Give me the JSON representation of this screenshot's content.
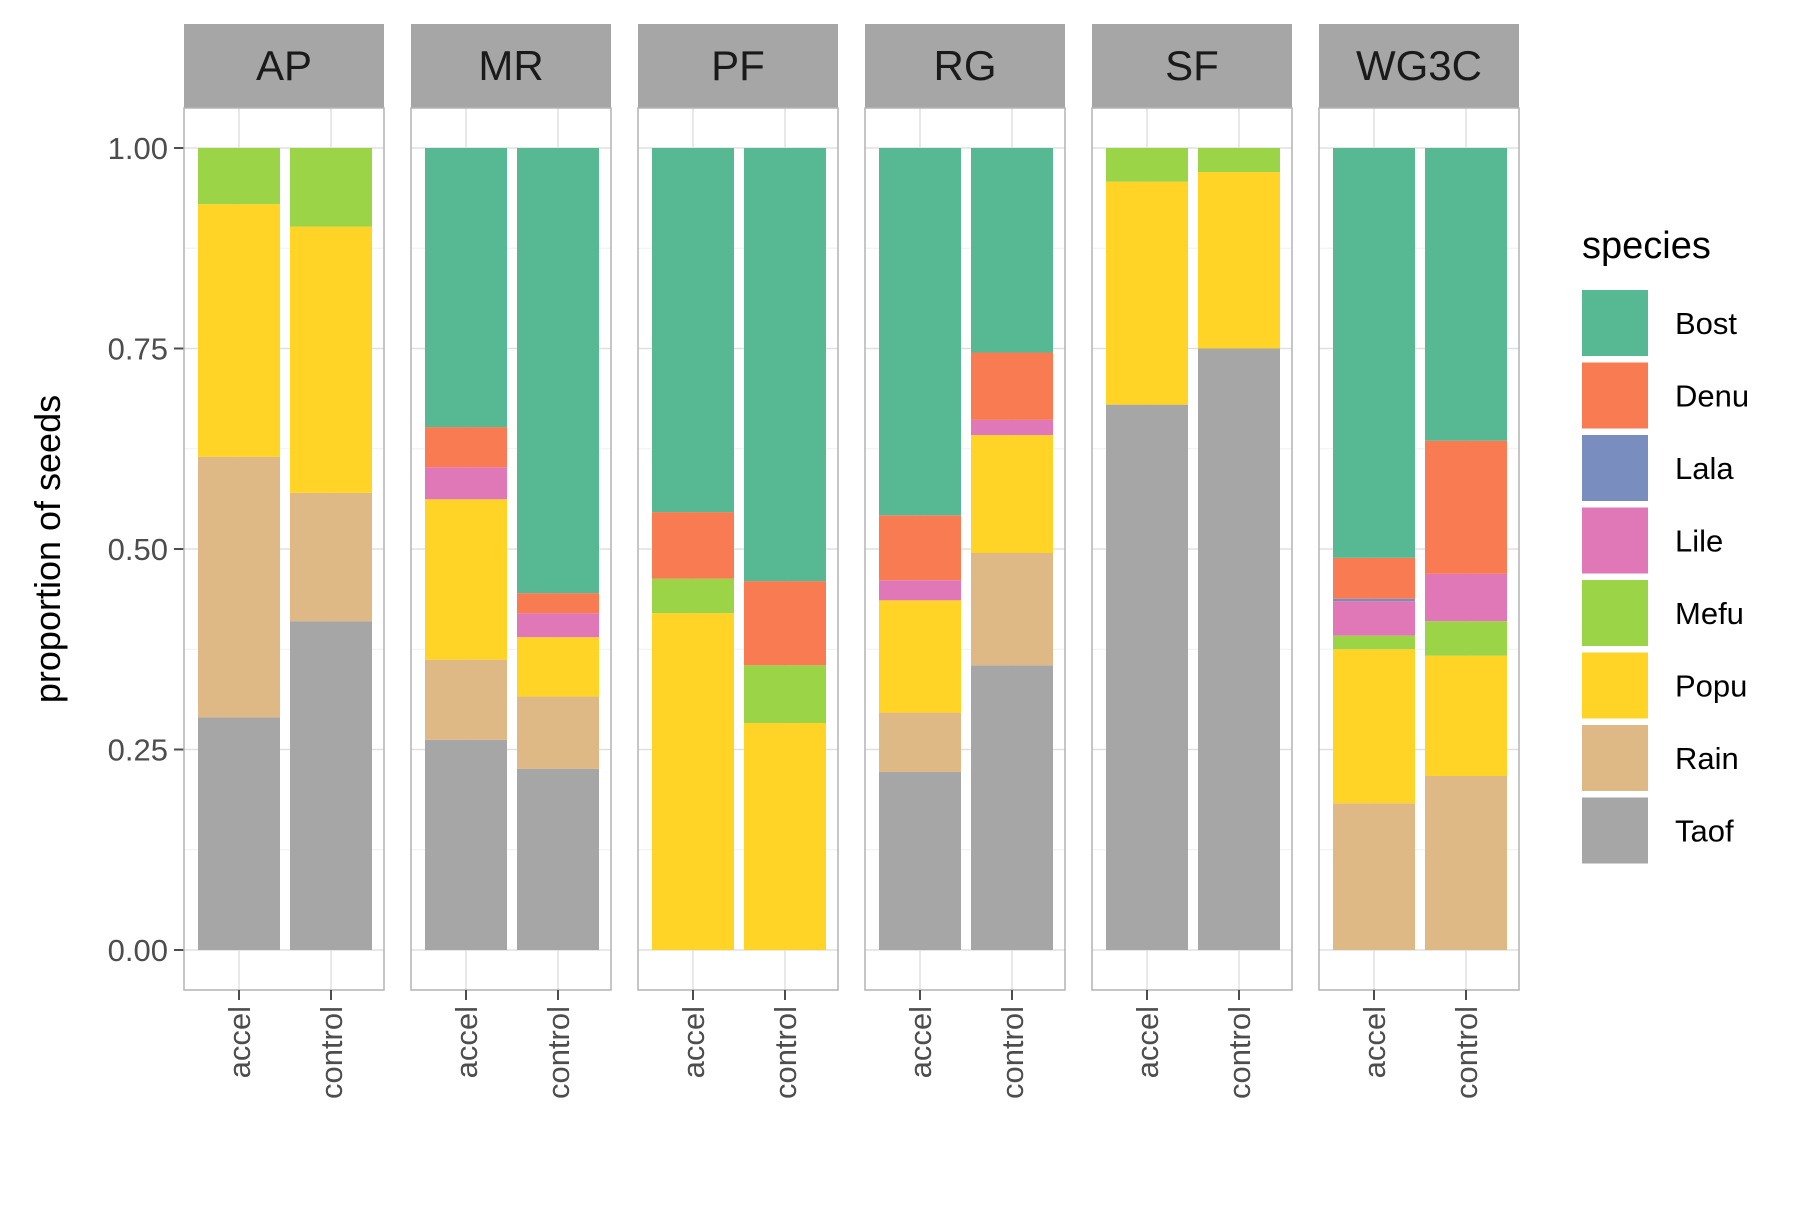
{
  "chart_data": {
    "type": "bar",
    "stacked": true,
    "faceted": true,
    "ylabel": "proportion of seeds",
    "xlabel": "",
    "ylim": [
      0,
      1
    ],
    "y_ticks": [
      0,
      0.25,
      0.5,
      0.75,
      1.0
    ],
    "y_tick_labels": [
      "0.00",
      "0.25",
      "0.50",
      "0.75",
      "1.00"
    ],
    "categories": [
      "accel",
      "control"
    ],
    "legend": {
      "title": "species",
      "position": "right",
      "items": [
        {
          "name": "Bost",
          "color": "#57b994"
        },
        {
          "name": "Denu",
          "color": "#f87b52"
        },
        {
          "name": "Lala",
          "color": "#7a8dbf"
        },
        {
          "name": "Lile",
          "color": "#e078b8"
        },
        {
          "name": "Mefu",
          "color": "#9cd447"
        },
        {
          "name": "Popu",
          "color": "#ffd426"
        },
        {
          "name": "Rain",
          "color": "#deb885"
        },
        {
          "name": "Taof",
          "color": "#a6a6a6"
        }
      ]
    },
    "stack_order": [
      "Taof",
      "Rain",
      "Popu",
      "Mefu",
      "Lile",
      "Lala",
      "Denu",
      "Bost"
    ],
    "facets": [
      {
        "name": "AP",
        "bars": [
          {
            "category": "accel",
            "values": {
              "Taof": 0.29,
              "Rain": 0.325,
              "Popu": 0.315,
              "Mefu": 0.07
            }
          },
          {
            "category": "control",
            "values": {
              "Taof": 0.41,
              "Rain": 0.16,
              "Popu": 0.332,
              "Mefu": 0.098
            }
          }
        ]
      },
      {
        "name": "MR",
        "bars": [
          {
            "category": "accel",
            "values": {
              "Taof": 0.262,
              "Rain": 0.1,
              "Popu": 0.2,
              "Lile": 0.04,
              "Denu": 0.05,
              "Bost": 0.348
            }
          },
          {
            "category": "control",
            "values": {
              "Taof": 0.226,
              "Rain": 0.09,
              "Popu": 0.074,
              "Lile": 0.03,
              "Denu": 0.025,
              "Bost": 0.555
            }
          }
        ]
      },
      {
        "name": "PF",
        "bars": [
          {
            "category": "accel",
            "values": {
              "Popu": 0.42,
              "Mefu": 0.043,
              "Denu": 0.083,
              "Bost": 0.454
            }
          },
          {
            "category": "control",
            "values": {
              "Popu": 0.283,
              "Mefu": 0.072,
              "Denu": 0.105,
              "Bost": 0.54
            }
          }
        ]
      },
      {
        "name": "RG",
        "bars": [
          {
            "category": "accel",
            "values": {
              "Taof": 0.222,
              "Rain": 0.074,
              "Popu": 0.14,
              "Lile": 0.025,
              "Denu": 0.081,
              "Bost": 0.458
            }
          },
          {
            "category": "control",
            "values": {
              "Taof": 0.355,
              "Rain": 0.14,
              "Popu": 0.147,
              "Lile": 0.019,
              "Denu": 0.084,
              "Bost": 0.255
            }
          }
        ]
      },
      {
        "name": "SF",
        "bars": [
          {
            "category": "accel",
            "values": {
              "Taof": 0.68,
              "Popu": 0.278,
              "Mefu": 0.042
            }
          },
          {
            "category": "control",
            "values": {
              "Taof": 0.75,
              "Popu": 0.22,
              "Mefu": 0.03
            }
          }
        ]
      },
      {
        "name": "WG3C",
        "bars": [
          {
            "category": "accel",
            "values": {
              "Rain": 0.183,
              "Popu": 0.192,
              "Mefu": 0.017,
              "Lile": 0.043,
              "Lala": 0.003,
              "Denu": 0.051,
              "Bost": 0.511
            }
          },
          {
            "category": "control",
            "values": {
              "Rain": 0.217,
              "Popu": 0.15,
              "Mefu": 0.043,
              "Lile": 0.059,
              "Denu": 0.166,
              "Bost": 0.365
            }
          }
        ]
      }
    ]
  }
}
